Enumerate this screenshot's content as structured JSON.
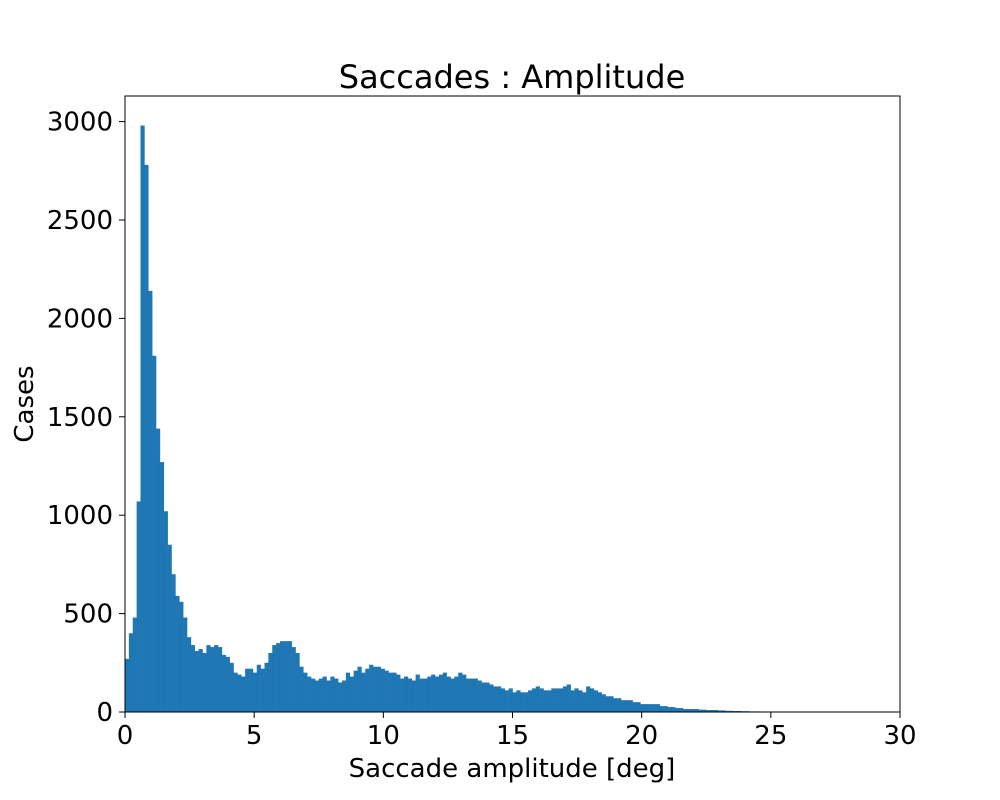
{
  "chart_data": {
    "type": "bar",
    "title": "Saccades : Amplitude",
    "xlabel": "Saccade amplitude [deg]",
    "ylabel": "Cases",
    "xlim": [
      0,
      30
    ],
    "ylim": [
      0,
      3130
    ],
    "xticks": [
      0,
      5,
      10,
      15,
      20,
      25,
      30
    ],
    "yticks": [
      0,
      500,
      1000,
      1500,
      2000,
      2500,
      3000
    ],
    "bar_color": "#1f77b4",
    "grid": false,
    "bin_width": 0.15,
    "bins_start": [
      0,
      0.15,
      0.3,
      0.45,
      0.6,
      0.75,
      0.9,
      1.05,
      1.2,
      1.35,
      1.5,
      1.65,
      1.8,
      1.95,
      2.1,
      2.25,
      2.4,
      2.55,
      2.7,
      2.85,
      3.0,
      3.15,
      3.3,
      3.45,
      3.6,
      3.75,
      3.9,
      4.05,
      4.2,
      4.35,
      4.5,
      4.65,
      4.8,
      4.95,
      5.1,
      5.25,
      5.4,
      5.55,
      5.7,
      5.85,
      6.0,
      6.15,
      6.3,
      6.45,
      6.6,
      6.75,
      6.9,
      7.05,
      7.2,
      7.35,
      7.5,
      7.65,
      7.8,
      7.95,
      8.1,
      8.25,
      8.4,
      8.55,
      8.7,
      8.85,
      9.0,
      9.15,
      9.3,
      9.45,
      9.6,
      9.75,
      9.9,
      10.05,
      10.2,
      10.35,
      10.5,
      10.65,
      10.8,
      10.95,
      11.1,
      11.25,
      11.4,
      11.55,
      11.7,
      11.85,
      12.0,
      12.15,
      12.3,
      12.45,
      12.6,
      12.75,
      12.9,
      13.05,
      13.2,
      13.35,
      13.5,
      13.65,
      13.8,
      13.95,
      14.1,
      14.25,
      14.4,
      14.55,
      14.7,
      14.85,
      15.0,
      15.15,
      15.3,
      15.45,
      15.6,
      15.75,
      15.9,
      16.05,
      16.2,
      16.35,
      16.5,
      16.65,
      16.8,
      16.95,
      17.1,
      17.25,
      17.4,
      17.55,
      17.7,
      17.85,
      18.0,
      18.15,
      18.3,
      18.45,
      18.6,
      18.75,
      18.9,
      19.05,
      19.2,
      19.35,
      19.5,
      19.65,
      19.8,
      19.95,
      20.1,
      20.25,
      20.4,
      20.55,
      20.7,
      20.85,
      21.0,
      21.15,
      21.3,
      21.45,
      21.6,
      21.75,
      21.9,
      22.05,
      22.2,
      22.35,
      22.5,
      22.65,
      22.8,
      22.95,
      23.1,
      23.25,
      23.4,
      23.55,
      23.7,
      23.85,
      24.0,
      24.15,
      24.3,
      24.45,
      24.6,
      24.75,
      24.9,
      25.05,
      25.2,
      25.35,
      25.5,
      25.65,
      25.8,
      25.95,
      26.1,
      26.25,
      26.4,
      26.55,
      26.7,
      26.85,
      27.0,
      27.15,
      27.3,
      27.45,
      27.6,
      27.75,
      27.9,
      28.05,
      28.2,
      28.35,
      28.5,
      28.65,
      28.8,
      28.95,
      29.1
    ],
    "values": [
      270,
      400,
      480,
      1070,
      2980,
      2780,
      2140,
      1810,
      1440,
      1270,
      1020,
      850,
      700,
      590,
      560,
      480,
      380,
      340,
      310,
      320,
      300,
      340,
      330,
      340,
      330,
      290,
      280,
      250,
      200,
      190,
      180,
      220,
      220,
      200,
      240,
      220,
      250,
      300,
      340,
      350,
      360,
      360,
      360,
      330,
      300,
      230,
      200,
      180,
      170,
      160,
      170,
      180,
      160,
      180,
      170,
      150,
      160,
      200,
      180,
      210,
      230,
      200,
      220,
      240,
      230,
      230,
      220,
      210,
      200,
      200,
      190,
      170,
      180,
      170,
      160,
      190,
      170,
      170,
      180,
      190,
      180,
      190,
      200,
      180,
      170,
      180,
      200,
      190,
      170,
      170,
      170,
      160,
      150,
      150,
      140,
      130,
      130,
      120,
      110,
      120,
      100,
      110,
      100,
      100,
      110,
      120,
      130,
      120,
      110,
      110,
      120,
      120,
      120,
      130,
      140,
      110,
      120,
      110,
      100,
      130,
      120,
      110,
      100,
      90,
      80,
      80,
      70,
      70,
      60,
      60,
      60,
      50,
      50,
      40,
      40,
      40,
      40,
      40,
      30,
      30,
      25,
      25,
      20,
      20,
      15,
      15,
      15,
      15,
      12,
      12,
      10,
      10,
      10,
      8,
      8,
      6,
      6,
      5,
      5,
      4,
      4,
      3,
      3,
      3,
      2,
      2,
      2,
      1,
      1,
      1,
      1,
      1,
      1,
      1,
      1,
      1,
      1,
      1,
      1,
      1,
      1,
      1,
      1,
      1,
      1,
      1,
      1,
      1,
      1,
      1,
      1,
      1,
      1,
      1,
      1,
      1,
      1,
      1,
      1,
      1,
      1,
      1
    ]
  }
}
